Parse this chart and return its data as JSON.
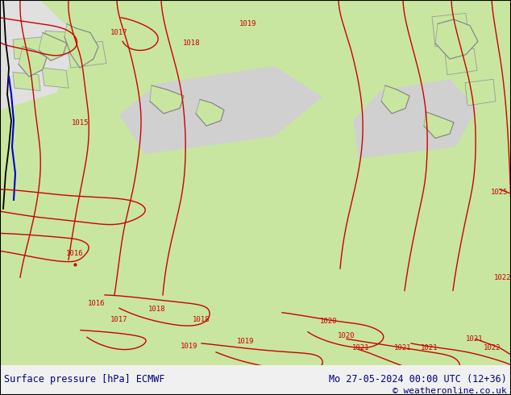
{
  "title_left": "Surface pressure [hPa] ECMWF",
  "title_right": "Mo 27-05-2024 00:00 UTC (12+36)",
  "copyright": "© weatheronline.co.uk",
  "bg_color": "#f0f0f0",
  "map_land_color": "#c8e6a0",
  "map_gray_color": "#c8c8c8",
  "isobar_color_red": "#cc0000",
  "isobar_color_black": "#000000",
  "isobar_color_blue": "#0000cc",
  "footer_bg": "#ffffff",
  "footer_text_color": "#000080",
  "font_size_footer": 9,
  "font_size_label": 8,
  "figwidth": 6.34,
  "figheight": 4.9,
  "dpi": 100
}
